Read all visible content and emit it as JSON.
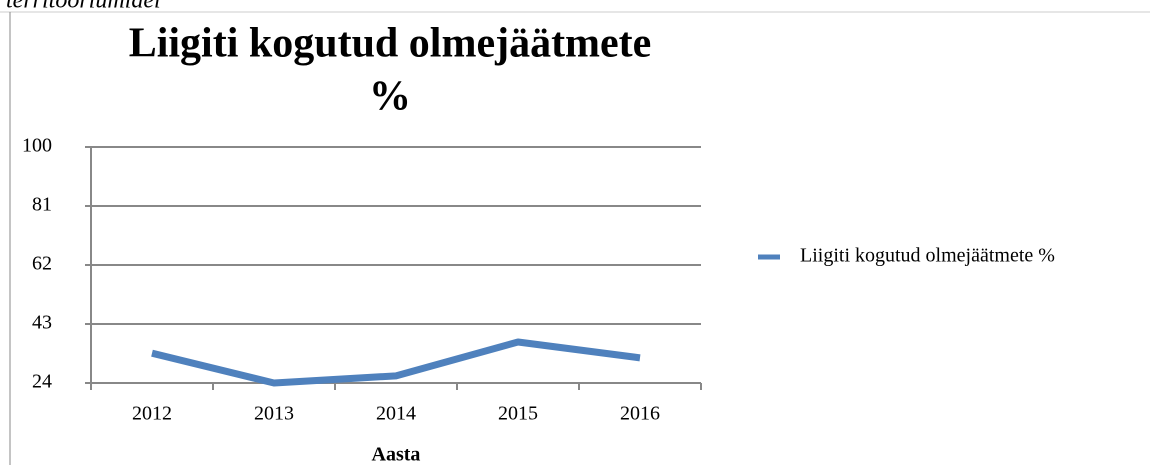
{
  "page_text": "territooriumidel",
  "chart_data": {
    "type": "line",
    "title": [
      "Liigiti kogutud olmejäätmete",
      "%"
    ],
    "x_label": "Aasta",
    "categories": [
      "2012",
      "2013",
      "2014",
      "2015",
      "2016"
    ],
    "series": [
      {
        "name": "Liigiti kogutud olmejäätmete %",
        "color": "#4f81bd",
        "values": [
          33.6,
          24,
          26.3,
          37.2,
          32.1
        ]
      }
    ],
    "ylim": [
      24,
      100
    ],
    "yticks": [
      24,
      43,
      62,
      81,
      100
    ],
    "grid": true,
    "legend": "right"
  }
}
